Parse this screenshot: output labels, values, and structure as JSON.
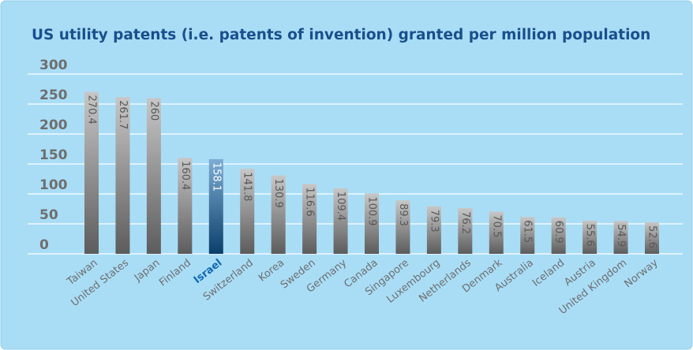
{
  "chart_data": {
    "type": "bar",
    "title": "US utility patents (i.e. patents of invention) granted per million population",
    "categories": [
      "Taiwan",
      "United States",
      "Japan",
      "Finland",
      "Israel",
      "Switzerland",
      "Korea",
      "Sweden",
      "Germany",
      "Canada",
      "Singapore",
      "Luxembourg",
      "Netherlands",
      "Denmark",
      "Australia",
      "Iceland",
      "Austria",
      "United Kingdom",
      "Norway"
    ],
    "values": [
      270.4,
      261.7,
      260,
      160.4,
      158.1,
      141.8,
      130.9,
      116.6,
      109.4,
      100.9,
      89.3,
      79.3,
      76.2,
      70.5,
      61.5,
      60.9,
      55.6,
      54.9,
      52.6
    ],
    "colors": [
      "#9a9a9a",
      "#9a9a9a",
      "#9a9a9a",
      "#9a9a9a",
      "#1269b0",
      "#9a9a9a",
      "#9a9a9a",
      "#9a9a9a",
      "#9a9a9a",
      "#9a9a9a",
      "#9a9a9a",
      "#9a9a9a",
      "#9a9a9a",
      "#9a9a9a",
      "#9a9a9a",
      "#9a9a9a",
      "#9a9a9a",
      "#9a9a9a",
      "#9a9a9a"
    ],
    "ylim": [
      0,
      300
    ],
    "yticks": [
      0,
      50,
      100,
      150,
      200,
      250,
      300
    ],
    "grid": true
  }
}
